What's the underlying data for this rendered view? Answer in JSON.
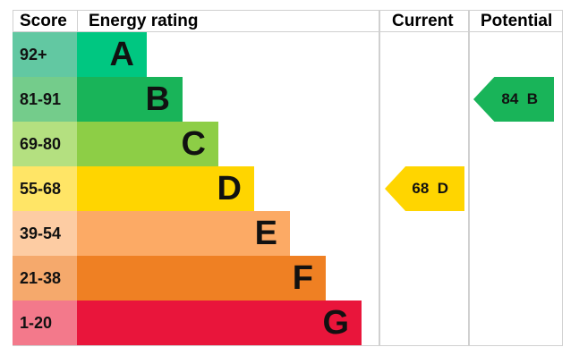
{
  "headers": {
    "score": "Score",
    "rating": "Energy rating",
    "current": "Current",
    "potential": "Potential"
  },
  "chart_data": {
    "type": "table",
    "bands": [
      {
        "score": "92+",
        "letter": "A",
        "color": "#00c781",
        "score_color": "#62c8a2"
      },
      {
        "score": "81-91",
        "letter": "B",
        "color": "#19b459",
        "score_color": "#74cc8b"
      },
      {
        "score": "69-80",
        "letter": "C",
        "color": "#8dce46",
        "score_color": "#b4e080"
      },
      {
        "score": "55-68",
        "letter": "D",
        "color": "#ffd500",
        "score_color": "#ffe566"
      },
      {
        "score": "39-54",
        "letter": "E",
        "color": "#fcaa65",
        "score_color": "#fdcca3"
      },
      {
        "score": "21-38",
        "letter": "F",
        "color": "#ef8023",
        "score_color": "#f5a96c"
      },
      {
        "score": "1-20",
        "letter": "G",
        "color": "#e9153b",
        "score_color": "#f3798b"
      }
    ],
    "current": {
      "value": 68,
      "letter": "D",
      "label": "68  D",
      "color": "#ffd500"
    },
    "potential": {
      "value": 84,
      "letter": "B",
      "label": "84  B",
      "color": "#19b459"
    }
  }
}
